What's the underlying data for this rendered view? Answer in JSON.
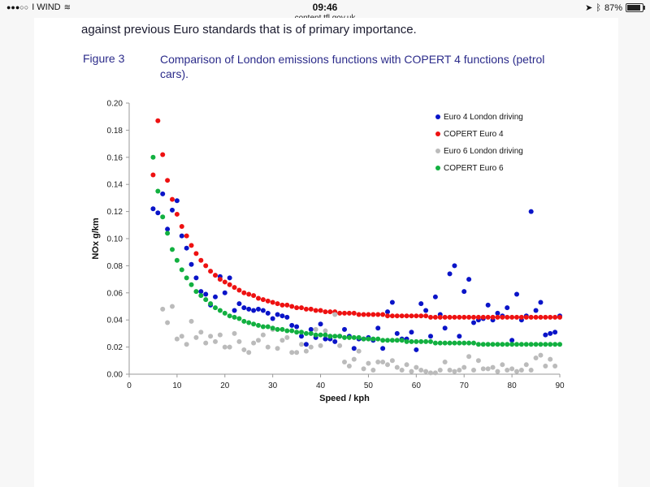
{
  "status_bar": {
    "carrier": "I WIND",
    "time": "09:46",
    "url": "content.tfl.gov.uk",
    "battery": "87%",
    "battery_level": 0.87
  },
  "document": {
    "body_text": "against previous Euro standards that is of primary importance.",
    "figure_label": "Figure 3",
    "figure_caption": "Comparison of London emissions functions with COPERT 4 functions (petrol cars)."
  },
  "chart_data": {
    "type": "scatter",
    "xlabel": "Speed / kph",
    "ylabel": "NOx g/km",
    "xlim": [
      0,
      90
    ],
    "ylim": [
      0,
      0.2
    ],
    "xticks": [
      0,
      10,
      20,
      30,
      40,
      50,
      60,
      70,
      80,
      90
    ],
    "yticks": [
      0.0,
      0.02,
      0.04,
      0.06,
      0.08,
      0.1,
      0.12,
      0.14,
      0.16,
      0.18,
      0.2
    ],
    "ytick_labels": [
      "0.00",
      "0.02",
      "0.04",
      "0.06",
      "0.08",
      "0.10",
      "0.12",
      "0.14",
      "0.16",
      "0.18",
      "0.20"
    ],
    "legend_position": "top-right",
    "series": [
      {
        "name": "Euro 4 London driving",
        "color": "#0a14c8",
        "x": [
          5,
          6,
          7,
          8,
          9,
          10,
          11,
          12,
          13,
          14,
          15,
          16,
          17,
          18,
          19,
          20,
          21,
          22,
          23,
          24,
          25,
          26,
          27,
          28,
          29,
          30,
          31,
          32,
          33,
          34,
          35,
          36,
          37,
          38,
          39,
          40,
          41,
          42,
          43,
          44,
          45,
          46,
          47,
          48,
          49,
          50,
          51,
          52,
          53,
          54,
          55,
          56,
          57,
          58,
          59,
          60,
          61,
          62,
          63,
          64,
          65,
          66,
          67,
          68,
          69,
          70,
          71,
          72,
          73,
          74,
          75,
          76,
          77,
          78,
          79,
          80,
          81,
          82,
          83,
          84,
          85,
          86,
          87,
          88,
          89,
          90
        ],
        "values": [
          0.122,
          0.119,
          0.133,
          0.107,
          0.121,
          0.128,
          0.102,
          0.093,
          0.081,
          0.071,
          0.061,
          0.059,
          0.051,
          0.057,
          0.072,
          0.06,
          0.071,
          0.047,
          0.052,
          0.049,
          0.048,
          0.047,
          0.048,
          0.047,
          0.045,
          0.041,
          0.044,
          0.043,
          0.042,
          0.036,
          0.035,
          0.028,
          0.022,
          0.033,
          0.027,
          0.037,
          0.026,
          0.026,
          0.024,
          0.028,
          0.033,
          0.028,
          0.019,
          0.026,
          0.026,
          0.027,
          0.025,
          0.034,
          0.019,
          0.046,
          0.053,
          0.03,
          0.026,
          0.026,
          0.031,
          0.018,
          0.052,
          0.047,
          0.028,
          0.057,
          0.044,
          0.034,
          0.074,
          0.08,
          0.028,
          0.061,
          0.07,
          0.038,
          0.04,
          0.041,
          0.051,
          0.04,
          0.045,
          0.043,
          0.049,
          0.025,
          0.059,
          0.04,
          0.043,
          0.12,
          0.047,
          0.053,
          0.029,
          0.03,
          0.031,
          0.043
        ]
      },
      {
        "name": "COPERT Euro 4",
        "color": "#ee1111",
        "x": [
          5,
          6,
          7,
          8,
          9,
          10,
          11,
          12,
          13,
          14,
          15,
          16,
          17,
          18,
          19,
          20,
          21,
          22,
          23,
          24,
          25,
          26,
          27,
          28,
          29,
          30,
          31,
          32,
          33,
          34,
          35,
          36,
          37,
          38,
          39,
          40,
          41,
          42,
          43,
          44,
          45,
          46,
          47,
          48,
          49,
          50,
          51,
          52,
          53,
          54,
          55,
          56,
          57,
          58,
          59,
          60,
          61,
          62,
          63,
          64,
          65,
          66,
          67,
          68,
          69,
          70,
          71,
          72,
          73,
          74,
          75,
          76,
          77,
          78,
          79,
          80,
          81,
          82,
          83,
          84,
          85,
          86,
          87,
          88,
          89,
          90
        ],
        "values": [
          0.147,
          0.187,
          0.162,
          0.143,
          0.129,
          0.118,
          0.109,
          0.102,
          0.095,
          0.089,
          0.084,
          0.08,
          0.076,
          0.073,
          0.07,
          0.068,
          0.066,
          0.064,
          0.062,
          0.06,
          0.059,
          0.058,
          0.056,
          0.055,
          0.054,
          0.053,
          0.052,
          0.051,
          0.051,
          0.05,
          0.049,
          0.049,
          0.048,
          0.048,
          0.047,
          0.047,
          0.046,
          0.046,
          0.046,
          0.045,
          0.045,
          0.045,
          0.045,
          0.044,
          0.044,
          0.044,
          0.044,
          0.044,
          0.044,
          0.043,
          0.043,
          0.043,
          0.043,
          0.043,
          0.043,
          0.043,
          0.043,
          0.043,
          0.042,
          0.042,
          0.042,
          0.042,
          0.042,
          0.042,
          0.042,
          0.042,
          0.042,
          0.042,
          0.042,
          0.042,
          0.042,
          0.042,
          0.042,
          0.042,
          0.042,
          0.042,
          0.042,
          0.042,
          0.042,
          0.042,
          0.042,
          0.042,
          0.042,
          0.042,
          0.042,
          0.042
        ]
      },
      {
        "name": "Euro 6 London driving",
        "color": "#bbbbbb",
        "x": [
          7,
          8,
          9,
          10,
          11,
          12,
          13,
          14,
          15,
          16,
          17,
          18,
          19,
          20,
          21,
          22,
          23,
          24,
          25,
          26,
          27,
          28,
          29,
          30,
          31,
          32,
          33,
          34,
          35,
          36,
          37,
          38,
          39,
          40,
          41,
          42,
          43,
          44,
          45,
          46,
          47,
          48,
          49,
          50,
          51,
          52,
          53,
          54,
          55,
          56,
          57,
          58,
          59,
          60,
          61,
          62,
          63,
          64,
          65,
          66,
          67,
          68,
          69,
          70,
          71,
          72,
          73,
          74,
          75,
          76,
          77,
          78,
          79,
          80,
          81,
          82,
          83,
          84,
          85,
          86,
          87,
          88,
          89
        ],
        "values": [
          0.048,
          0.038,
          0.05,
          0.026,
          0.028,
          0.022,
          0.039,
          0.027,
          0.031,
          0.023,
          0.028,
          0.024,
          0.029,
          0.02,
          0.02,
          0.03,
          0.024,
          0.018,
          0.016,
          0.023,
          0.025,
          0.029,
          0.02,
          0.033,
          0.019,
          0.025,
          0.027,
          0.016,
          0.016,
          0.022,
          0.017,
          0.02,
          0.033,
          0.021,
          0.032,
          0.028,
          0.044,
          0.021,
          0.009,
          0.006,
          0.011,
          0.017,
          0.004,
          0.008,
          0.003,
          0.009,
          0.009,
          0.007,
          0.01,
          0.005,
          0.003,
          0.007,
          0.002,
          0.005,
          0.003,
          0.002,
          0.001,
          0.001,
          0.003,
          0.009,
          0.003,
          0.002,
          0.003,
          0.005,
          0.013,
          0.003,
          0.01,
          0.004,
          0.004,
          0.005,
          0.002,
          0.007,
          0.003,
          0.004,
          0.002,
          0.003,
          0.007,
          0.003,
          0.012,
          0.014,
          0.006,
          0.011,
          0.006
        ]
      },
      {
        "name": "COPERT Euro 6",
        "color": "#12b040",
        "x": [
          5,
          6,
          7,
          8,
          9,
          10,
          11,
          12,
          13,
          14,
          15,
          16,
          17,
          18,
          19,
          20,
          21,
          22,
          23,
          24,
          25,
          26,
          27,
          28,
          29,
          30,
          31,
          32,
          33,
          34,
          35,
          36,
          37,
          38,
          39,
          40,
          41,
          42,
          43,
          44,
          45,
          46,
          47,
          48,
          49,
          50,
          51,
          52,
          53,
          54,
          55,
          56,
          57,
          58,
          59,
          60,
          61,
          62,
          63,
          64,
          65,
          66,
          67,
          68,
          69,
          70,
          71,
          72,
          73,
          74,
          75,
          76,
          77,
          78,
          79,
          80,
          81,
          82,
          83,
          84,
          85,
          86,
          87,
          88,
          89,
          90
        ],
        "values": [
          0.16,
          0.135,
          0.116,
          0.104,
          0.092,
          0.084,
          0.077,
          0.071,
          0.066,
          0.061,
          0.058,
          0.055,
          0.052,
          0.049,
          0.047,
          0.045,
          0.043,
          0.042,
          0.041,
          0.039,
          0.038,
          0.037,
          0.036,
          0.035,
          0.035,
          0.034,
          0.033,
          0.033,
          0.032,
          0.032,
          0.031,
          0.031,
          0.03,
          0.03,
          0.029,
          0.029,
          0.029,
          0.028,
          0.028,
          0.028,
          0.027,
          0.027,
          0.027,
          0.027,
          0.026,
          0.026,
          0.026,
          0.026,
          0.025,
          0.025,
          0.025,
          0.025,
          0.025,
          0.024,
          0.024,
          0.024,
          0.024,
          0.024,
          0.024,
          0.023,
          0.023,
          0.023,
          0.023,
          0.023,
          0.023,
          0.023,
          0.023,
          0.023,
          0.022,
          0.022,
          0.022,
          0.022,
          0.022,
          0.022,
          0.022,
          0.022,
          0.022,
          0.022,
          0.022,
          0.022,
          0.022,
          0.022,
          0.022,
          0.022,
          0.022,
          0.022
        ]
      }
    ]
  }
}
